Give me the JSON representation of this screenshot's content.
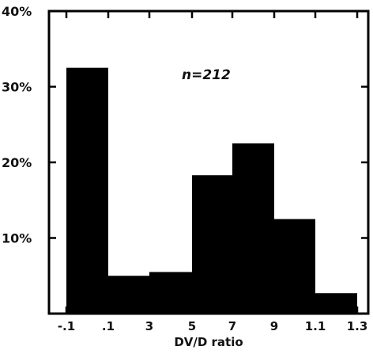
{
  "chart_data": {
    "type": "bar",
    "title": "",
    "xlabel": "DV/D ratio",
    "ylabel": "",
    "annotation": "n=212",
    "y_tick_labels": [
      "40%",
      "30%",
      "20%",
      "10%"
    ],
    "y_tick_values": [
      40,
      30,
      20,
      10
    ],
    "x_tick_labels": [
      "-.1",
      ".1",
      "3",
      "5",
      "7",
      "9",
      "1.1",
      "1.3"
    ],
    "ylim": [
      0,
      40
    ],
    "grid": false,
    "bar_color": "#000000",
    "categories": [
      "-.1–.1",
      ".1–.3",
      ".3–.5",
      ".5–.7",
      ".7–.9",
      ".9–1.1",
      "1.1–1.3"
    ],
    "values": [
      32.5,
      5.0,
      5.5,
      18.3,
      22.5,
      12.5,
      2.7
    ]
  }
}
